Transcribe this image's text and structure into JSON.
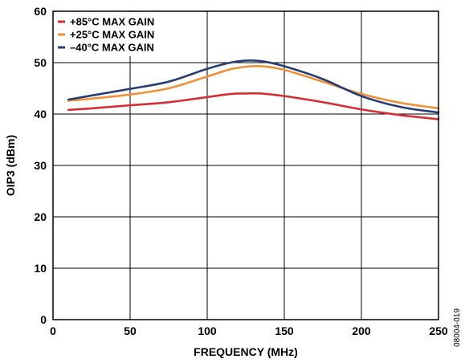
{
  "figure_id": "08004-019",
  "chart_data": {
    "type": "line",
    "xlabel": "FREQUENCY (MHz)",
    "ylabel": "OIP3 (dBm)",
    "xlim": [
      0,
      250
    ],
    "ylim": [
      0,
      60
    ],
    "xticks": [
      0,
      50,
      100,
      150,
      200,
      250
    ],
    "yticks": [
      0,
      10,
      20,
      30,
      40,
      50,
      60
    ],
    "grid": true,
    "legend_position": "top-left",
    "series": [
      {
        "name": "+85°C MAX GAIN",
        "color": "#d62c33",
        "x": [
          10,
          25,
          50,
          75,
          100,
          115,
          125,
          135,
          150,
          175,
          200,
          225,
          250
        ],
        "y": [
          40.8,
          41.1,
          41.7,
          42.3,
          43.3,
          43.9,
          44.0,
          44.0,
          43.5,
          42.3,
          40.9,
          39.8,
          39.0
        ]
      },
      {
        "name": "+25°C MAX GAIN",
        "color": "#f0913a",
        "x": [
          10,
          25,
          50,
          75,
          100,
          115,
          125,
          135,
          150,
          175,
          200,
          225,
          250
        ],
        "y": [
          42.6,
          43.0,
          43.8,
          45.0,
          47.3,
          48.7,
          49.2,
          49.3,
          48.6,
          46.3,
          43.9,
          42.2,
          41.1
        ]
      },
      {
        "name": "–40°C MAX GAIN",
        "color": "#273e74",
        "x": [
          10,
          25,
          50,
          75,
          100,
          115,
          125,
          135,
          150,
          175,
          200,
          225,
          250
        ],
        "y": [
          42.8,
          43.6,
          44.9,
          46.3,
          48.8,
          50.0,
          50.4,
          50.3,
          49.3,
          46.8,
          43.5,
          41.4,
          40.3
        ]
      }
    ]
  }
}
